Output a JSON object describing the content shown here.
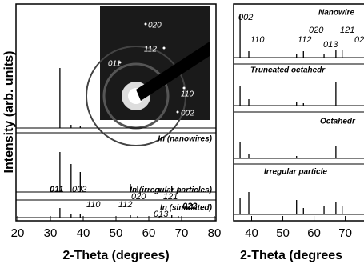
{
  "chart_data": [
    {
      "type": "stick",
      "xlabel": "2-Theta (degrees)",
      "ylabel": "Intensity (arb. units)",
      "xlim": [
        20,
        80
      ],
      "xticks": [
        20,
        30,
        40,
        50,
        60,
        70,
        80
      ],
      "series": [
        {
          "name": "In (nanowires)",
          "color": "#000000",
          "x": [
            32.9,
            36.3,
            39.1
          ],
          "values": [
            75,
            4,
            2
          ]
        },
        {
          "name": "In (irregular particles)",
          "color": "#000000",
          "x": [
            32.9,
            36.3,
            39.1,
            54.4,
            56.6,
            63.2,
            67.0,
            69.0
          ],
          "values": [
            50,
            35,
            25,
            10,
            8,
            5,
            8,
            6
          ]
        },
        {
          "name": "In (simulated)",
          "color": "#000000",
          "x": [
            32.9,
            36.3,
            39.1,
            54.4,
            56.6,
            63.2,
            67.0,
            69.0
          ],
          "values": [
            12,
            4,
            4,
            3,
            2,
            2,
            3,
            2
          ]
        }
      ],
      "annotations": [
        "011",
        "002",
        "110",
        "112",
        "020",
        "013",
        "121",
        "022"
      ],
      "inset_labels": [
        "020",
        "112",
        "011",
        "110",
        "002"
      ]
    },
    {
      "type": "stick",
      "xlabel": "2-Theta (degrees",
      "xlim": [
        35,
        76
      ],
      "xticks": [
        40,
        50,
        60,
        70
      ],
      "series": [
        {
          "name": "Nanowire",
          "color": "#000000",
          "x": [
            36.3,
            39.1,
            54.4,
            56.6,
            63.2,
            67.0,
            69.0
          ],
          "values": [
            55,
            8,
            5,
            8,
            5,
            10,
            10
          ]
        },
        {
          "name": "Truncated octahedr",
          "color": "#000000",
          "x": [
            36.3,
            39.1,
            54.4,
            56.6,
            67.0
          ],
          "values": [
            25,
            8,
            5,
            3,
            30
          ]
        },
        {
          "name": "Octahedr",
          "color": "#000000",
          "x": [
            36.3,
            39.1,
            54.4,
            67.0
          ],
          "values": [
            20,
            5,
            3,
            15
          ]
        },
        {
          "name": "Irregular particle",
          "color": "#000000",
          "x": [
            36.3,
            39.1,
            54.4,
            56.6,
            63.2,
            67.0,
            69.0
          ],
          "values": [
            20,
            28,
            18,
            8,
            10,
            15,
            10
          ]
        }
      ],
      "annotations": [
        "002",
        "110",
        "112",
        "020",
        "013",
        "121",
        "02"
      ]
    }
  ]
}
